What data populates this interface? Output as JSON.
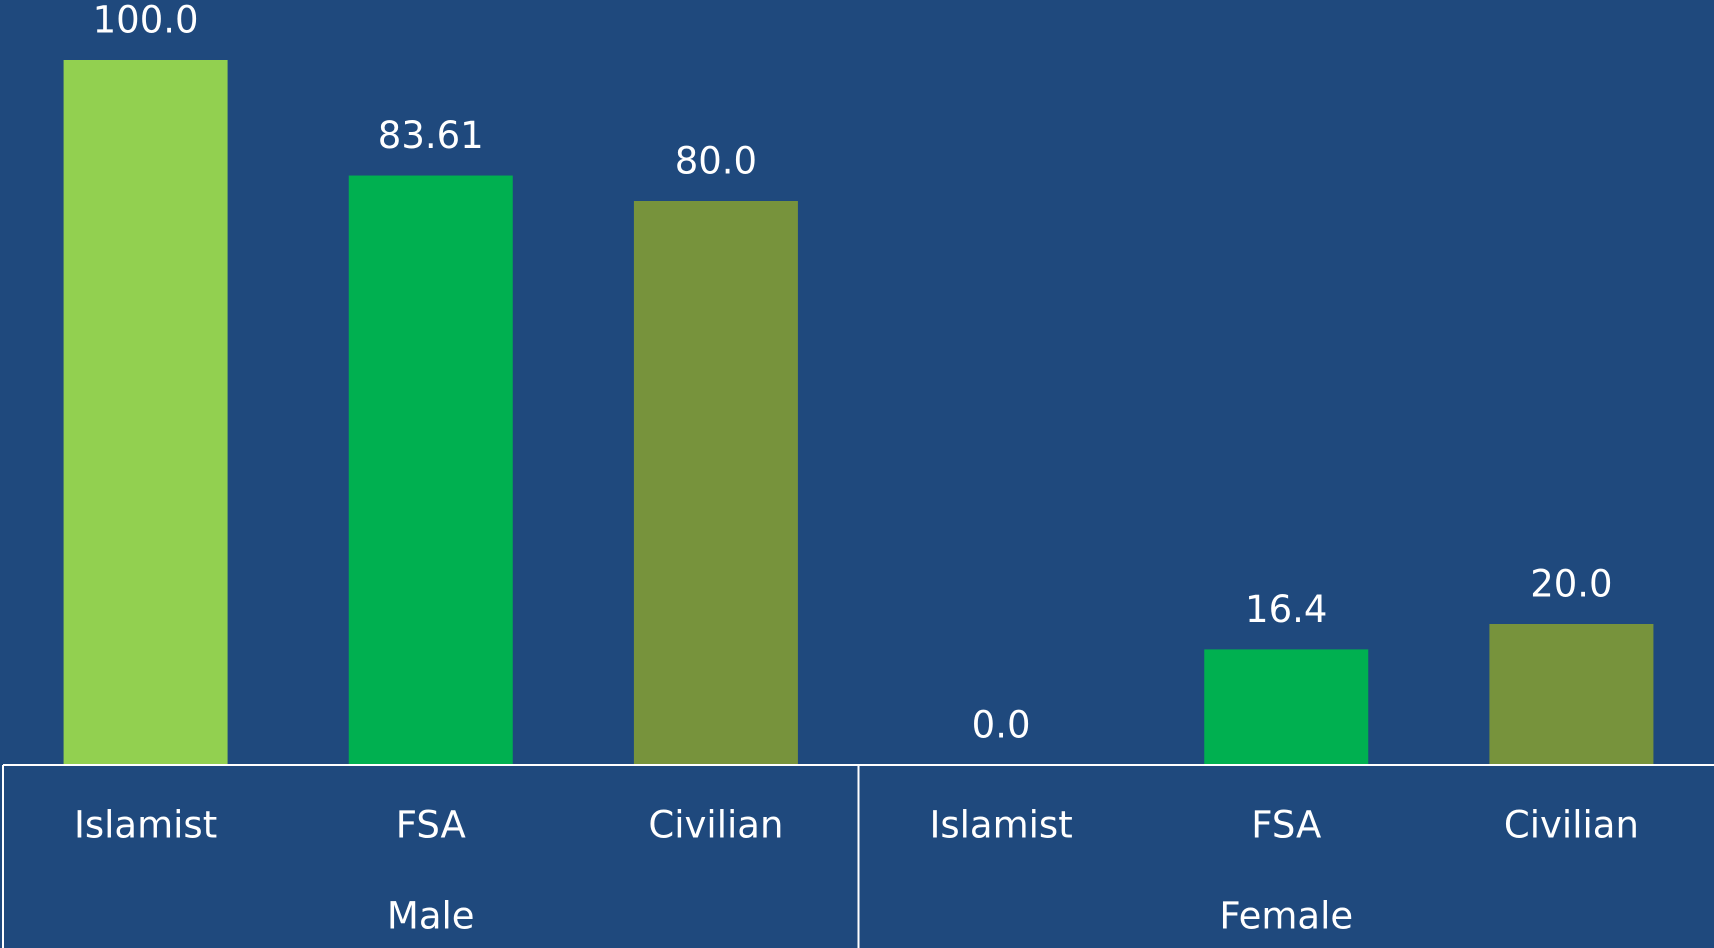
{
  "chart_data": {
    "type": "bar",
    "categories": [
      "Male",
      "Female"
    ],
    "series": [
      {
        "name": "Islamist",
        "color": "#92d050",
        "values": [
          100,
          0
        ],
        "value_labels": [
          "100.0",
          "0.0"
        ]
      },
      {
        "name": "FSA",
        "color": "#00b050",
        "values": [
          83.61,
          16.4
        ],
        "value_labels": [
          "83.61",
          "16.4"
        ]
      },
      {
        "name": "Civilian",
        "color": "#77933c",
        "values": [
          80,
          20
        ],
        "value_labels": [
          "80.0",
          "20.0"
        ]
      }
    ],
    "ylim": [
      0,
      100
    ]
  }
}
